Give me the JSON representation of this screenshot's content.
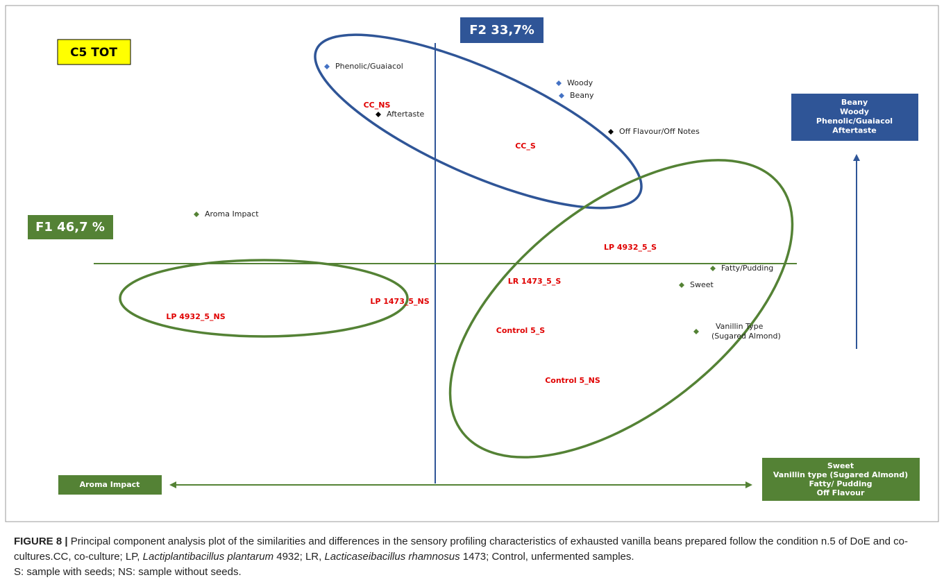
{
  "figure": {
    "tag": "C5  TOT",
    "f2": "F2 33,7%",
    "f1": "F1 46,7 %",
    "points": [
      {
        "label": "Phenolic/Guaiacol",
        "group": "blue"
      },
      {
        "label": "Woody",
        "group": "blue"
      },
      {
        "label": "Beany",
        "group": "blue"
      },
      {
        "label": "Aftertaste",
        "group": "black"
      },
      {
        "label": "Off Flavour/Off Notes",
        "group": "black"
      },
      {
        "label": "Aroma Impact",
        "group": "green"
      },
      {
        "label": "Fatty/Pudding",
        "group": "green"
      },
      {
        "label": "Sweet",
        "group": "green"
      },
      {
        "label": [
          "Vanillin Type",
          "(Sugared Almond)"
        ],
        "group": "green"
      }
    ],
    "samples": [
      "CC_NS",
      "CC_S",
      "LP 4932_5_S",
      "LR 1473_5_S",
      "LP 1473_5_NS",
      "LP 4932_5_NS",
      "Control 5_S",
      "Control 5_NS"
    ],
    "top_box": [
      "Beany",
      "Woody",
      "Phenolic/Guaiacol",
      "Aftertaste"
    ],
    "left_box": "Aroma Impact",
    "right_box": [
      "Sweet",
      "Vanillin type (Sugared Almond)",
      "Fatty/ Pudding",
      "Off Flavour"
    ]
  },
  "caption": {
    "label": "FIGURE 8 |",
    "parts": [
      " Principal component analysis plot of the similarities and differences in the sensory profiling characteristics of exhausted vanilla beans prepared follow the condition n.5 of DoE and co-cultures.CC, co-culture; LP, ",
      "Lactiplantibacillus plantarum",
      " 4932; LR, ",
      "Lacticaseibacillus rhamnosus",
      " 1473; Control, unfermented samples.",
      "S: sample with seeds; NS: sample without seeds."
    ]
  }
}
